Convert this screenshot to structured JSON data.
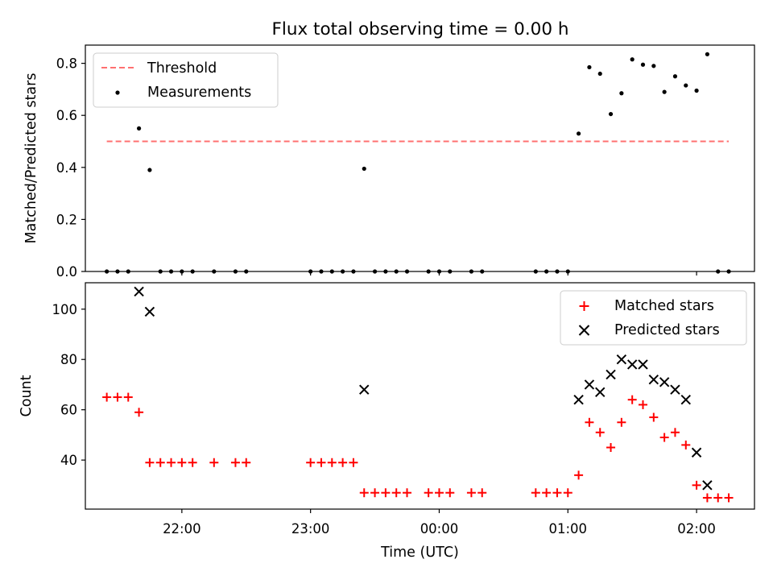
{
  "chart_data": [
    {
      "type": "scatter",
      "title": "Flux total observing time = 0.00 h",
      "xlabel": "",
      "ylabel": "Matched/Predicted stars",
      "ylim": [
        0,
        0.87
      ],
      "xlim": [
        "21:15",
        "02:27"
      ],
      "yticks": [
        "0.0",
        "0.2",
        "0.4",
        "0.6",
        "0.8"
      ],
      "legend_position": "upper-left",
      "colors": {
        "threshold": "#ff7070",
        "measurements": "#000000"
      },
      "threshold": {
        "label": "Threshold",
        "value": 0.5,
        "x_start": "21:25",
        "x_end": "02:15"
      },
      "series": [
        {
          "name": "Measurements",
          "points": [
            [
              "21:25",
              0
            ],
            [
              "21:30",
              0
            ],
            [
              "21:35",
              0
            ],
            [
              "21:40",
              0.55
            ],
            [
              "21:45",
              0.39
            ],
            [
              "21:50",
              0
            ],
            [
              "21:55",
              0
            ],
            [
              "22:00",
              0
            ],
            [
              "22:05",
              0
            ],
            [
              "22:15",
              0
            ],
            [
              "22:25",
              0
            ],
            [
              "22:30",
              0
            ],
            [
              "23:00",
              0
            ],
            [
              "23:05",
              0
            ],
            [
              "23:10",
              0
            ],
            [
              "23:15",
              0
            ],
            [
              "23:20",
              0
            ],
            [
              "23:25",
              0.395
            ],
            [
              "23:30",
              0
            ],
            [
              "23:35",
              0
            ],
            [
              "23:40",
              0
            ],
            [
              "23:45",
              0
            ],
            [
              "23:55",
              0
            ],
            [
              "00:00",
              0
            ],
            [
              "00:05",
              0
            ],
            [
              "00:15",
              0
            ],
            [
              "00:20",
              0
            ],
            [
              "00:45",
              0
            ],
            [
              "00:50",
              0
            ],
            [
              "00:55",
              0
            ],
            [
              "01:00",
              0
            ],
            [
              "01:05",
              0.53
            ],
            [
              "01:10",
              0.785
            ],
            [
              "01:15",
              0.76
            ],
            [
              "01:20",
              0.605
            ],
            [
              "01:25",
              0.685
            ],
            [
              "01:30",
              0.815
            ],
            [
              "01:35",
              0.795
            ],
            [
              "01:40",
              0.79
            ],
            [
              "01:45",
              0.69
            ],
            [
              "01:50",
              0.75
            ],
            [
              "01:55",
              0.715
            ],
            [
              "02:00",
              0.695
            ],
            [
              "02:05",
              0.835
            ],
            [
              "02:10",
              0
            ],
            [
              "02:15",
              0
            ]
          ]
        }
      ]
    },
    {
      "type": "scatter",
      "title": "",
      "xlabel": "Time (UTC)",
      "ylabel": "Count",
      "ylim": [
        20.5,
        110.5
      ],
      "xlim": [
        "21:15",
        "02:27"
      ],
      "xticks": [
        "22:00",
        "23:00",
        "00:00",
        "01:00",
        "02:00"
      ],
      "yticks": [
        "40",
        "60",
        "80",
        "100"
      ],
      "legend_position": "upper-right",
      "colors": {
        "matched": "#ff0000",
        "predicted": "#000000"
      },
      "series": [
        {
          "name": "Matched stars",
          "marker": "plus",
          "points": [
            [
              "21:25",
              65
            ],
            [
              "21:30",
              65
            ],
            [
              "21:35",
              65
            ],
            [
              "21:40",
              59
            ],
            [
              "21:45",
              39
            ],
            [
              "21:50",
              39
            ],
            [
              "21:55",
              39
            ],
            [
              "22:00",
              39
            ],
            [
              "22:05",
              39
            ],
            [
              "22:15",
              39
            ],
            [
              "22:25",
              39
            ],
            [
              "22:30",
              39
            ],
            [
              "23:00",
              39
            ],
            [
              "23:05",
              39
            ],
            [
              "23:10",
              39
            ],
            [
              "23:15",
              39
            ],
            [
              "23:20",
              39
            ],
            [
              "23:25",
              27
            ],
            [
              "23:30",
              27
            ],
            [
              "23:35",
              27
            ],
            [
              "23:40",
              27
            ],
            [
              "23:45",
              27
            ],
            [
              "23:55",
              27
            ],
            [
              "00:00",
              27
            ],
            [
              "00:05",
              27
            ],
            [
              "00:15",
              27
            ],
            [
              "00:20",
              27
            ],
            [
              "00:45",
              27
            ],
            [
              "00:50",
              27
            ],
            [
              "00:55",
              27
            ],
            [
              "01:00",
              27
            ],
            [
              "01:05",
              34
            ],
            [
              "01:10",
              55
            ],
            [
              "01:15",
              51
            ],
            [
              "01:20",
              45
            ],
            [
              "01:25",
              55
            ],
            [
              "01:30",
              64
            ],
            [
              "01:35",
              62
            ],
            [
              "01:40",
              57
            ],
            [
              "01:45",
              49
            ],
            [
              "01:50",
              51
            ],
            [
              "01:55",
              46
            ],
            [
              "02:00",
              30
            ],
            [
              "02:05",
              25
            ],
            [
              "02:10",
              25
            ],
            [
              "02:15",
              25
            ]
          ]
        },
        {
          "name": "Predicted stars",
          "marker": "x",
          "points": [
            [
              "21:40",
              107
            ],
            [
              "21:45",
              99
            ],
            [
              "23:25",
              68
            ],
            [
              "01:05",
              64
            ],
            [
              "01:10",
              70
            ],
            [
              "01:15",
              67
            ],
            [
              "01:20",
              74
            ],
            [
              "01:25",
              80
            ],
            [
              "01:30",
              78
            ],
            [
              "01:35",
              78
            ],
            [
              "01:40",
              72
            ],
            [
              "01:45",
              71
            ],
            [
              "01:50",
              68
            ],
            [
              "01:55",
              64
            ],
            [
              "02:00",
              43
            ],
            [
              "02:05",
              30
            ]
          ]
        }
      ]
    }
  ]
}
